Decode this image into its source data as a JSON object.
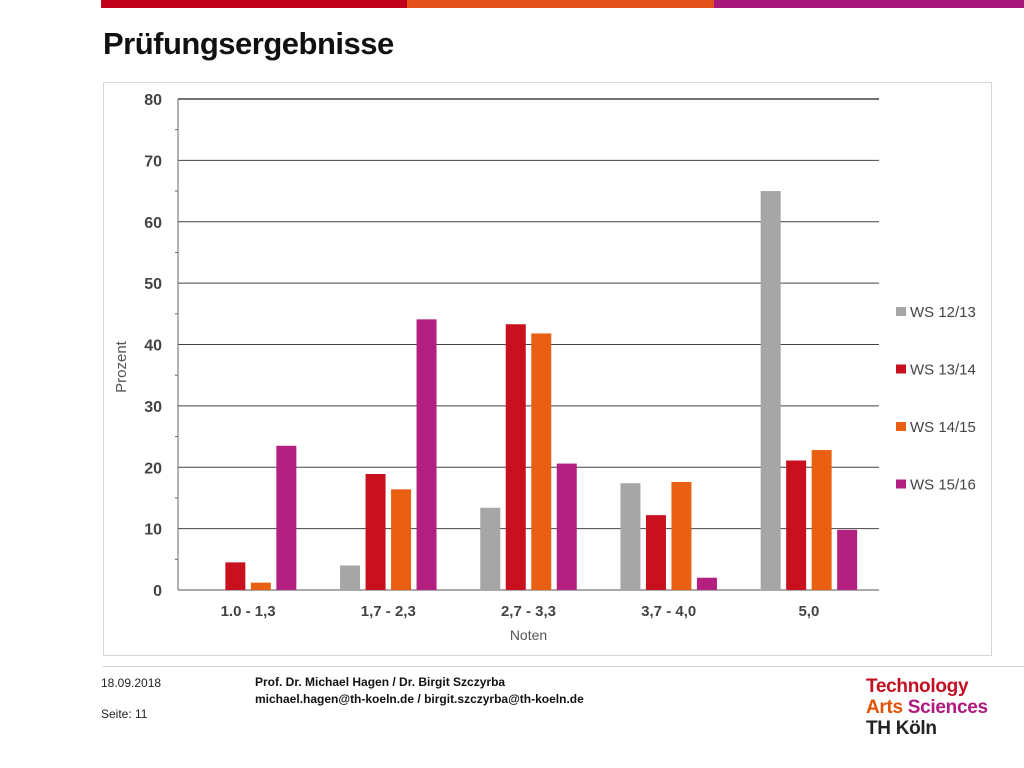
{
  "slide": {
    "title": "Prüfungsergebnisse",
    "bar_colors": [
      "#c00018",
      "#e2511c",
      "#a6197a"
    ]
  },
  "footer": {
    "date": "18.09.2018",
    "page_label": "Seite: 11",
    "authors": "Prof. Dr. Michael Hagen  / Dr. Birgit Szczyrba",
    "emails": "michael.hagen@th-koeln.de / birgit.szczyrba@th-koeln.de"
  },
  "logo": {
    "line1": "Technology",
    "line2a": "Arts",
    "line2b": "Sciences",
    "line3": "TH Köln",
    "colors": {
      "technology": "#c40f23",
      "arts": "#e05206",
      "sciences": "#b0197e",
      "th": "#222222"
    }
  },
  "chart_data": {
    "type": "bar",
    "xlabel": "Noten",
    "ylabel": "Prozent",
    "ylim": [
      0,
      80
    ],
    "yticks": [
      0,
      10,
      20,
      30,
      40,
      50,
      60,
      70,
      80
    ],
    "grid": true,
    "legend_position": "right",
    "categories": [
      "1.0 - 1,3",
      "1,7 - 2,3",
      "2,7 - 3,3",
      "3,7 - 4,0",
      "5,0"
    ],
    "series": [
      {
        "name": "WS 12/13",
        "color": "#a6a6a6",
        "values": [
          0,
          4.0,
          13.4,
          17.4,
          65.0
        ]
      },
      {
        "name": "WS 13/14",
        "color": "#c8101e",
        "values": [
          4.5,
          18.9,
          43.3,
          12.2,
          21.1
        ]
      },
      {
        "name": "WS 14/15",
        "color": "#ea6012",
        "values": [
          1.2,
          16.4,
          41.8,
          17.6,
          22.8
        ]
      },
      {
        "name": "WS 15/16",
        "color": "#b3207f",
        "values": [
          23.5,
          44.1,
          20.6,
          2.0,
          9.8
        ]
      }
    ]
  }
}
